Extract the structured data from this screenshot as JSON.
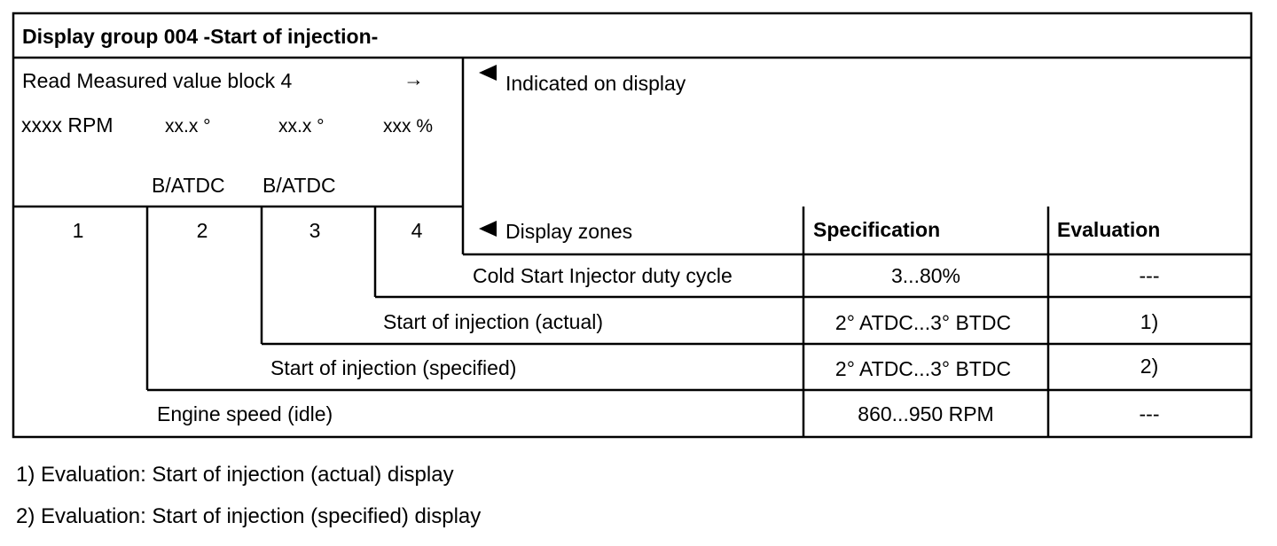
{
  "title": "Display group 004 -Start of injection-",
  "read_block": {
    "label": "Read Measured value block 4",
    "arrow": "→",
    "fields": [
      "xxxx RPM",
      "xx.x °",
      "xx.x °",
      "xxx %"
    ],
    "units": [
      "B/ATDC",
      "B/ATDC"
    ]
  },
  "indicated_on_display": "Indicated on display",
  "zone_numbers": [
    "1",
    "2",
    "3",
    "4"
  ],
  "header": {
    "display_zones": "Display zones",
    "specification": "Specification",
    "evaluation": "Evaluation"
  },
  "rows": [
    {
      "label": "Cold Start Injector duty cycle",
      "specification": "3...80%",
      "evaluation": "---"
    },
    {
      "label": "Start of injection (actual)",
      "specification": "2° ATDC...3° BTDC",
      "evaluation": "1)"
    },
    {
      "label": "Start of injection (specified)",
      "specification": "2° ATDC...3° BTDC",
      "evaluation": "2)"
    },
    {
      "label": "Engine speed (idle)",
      "specification": "860...950 RPM",
      "evaluation": "---"
    }
  ],
  "footnotes": [
    "1) Evaluation: Start of injection (actual) display",
    "2) Evaluation: Start of injection (specified) display"
  ],
  "icons": {
    "pointer": "left-triangle-pointer-icon"
  }
}
